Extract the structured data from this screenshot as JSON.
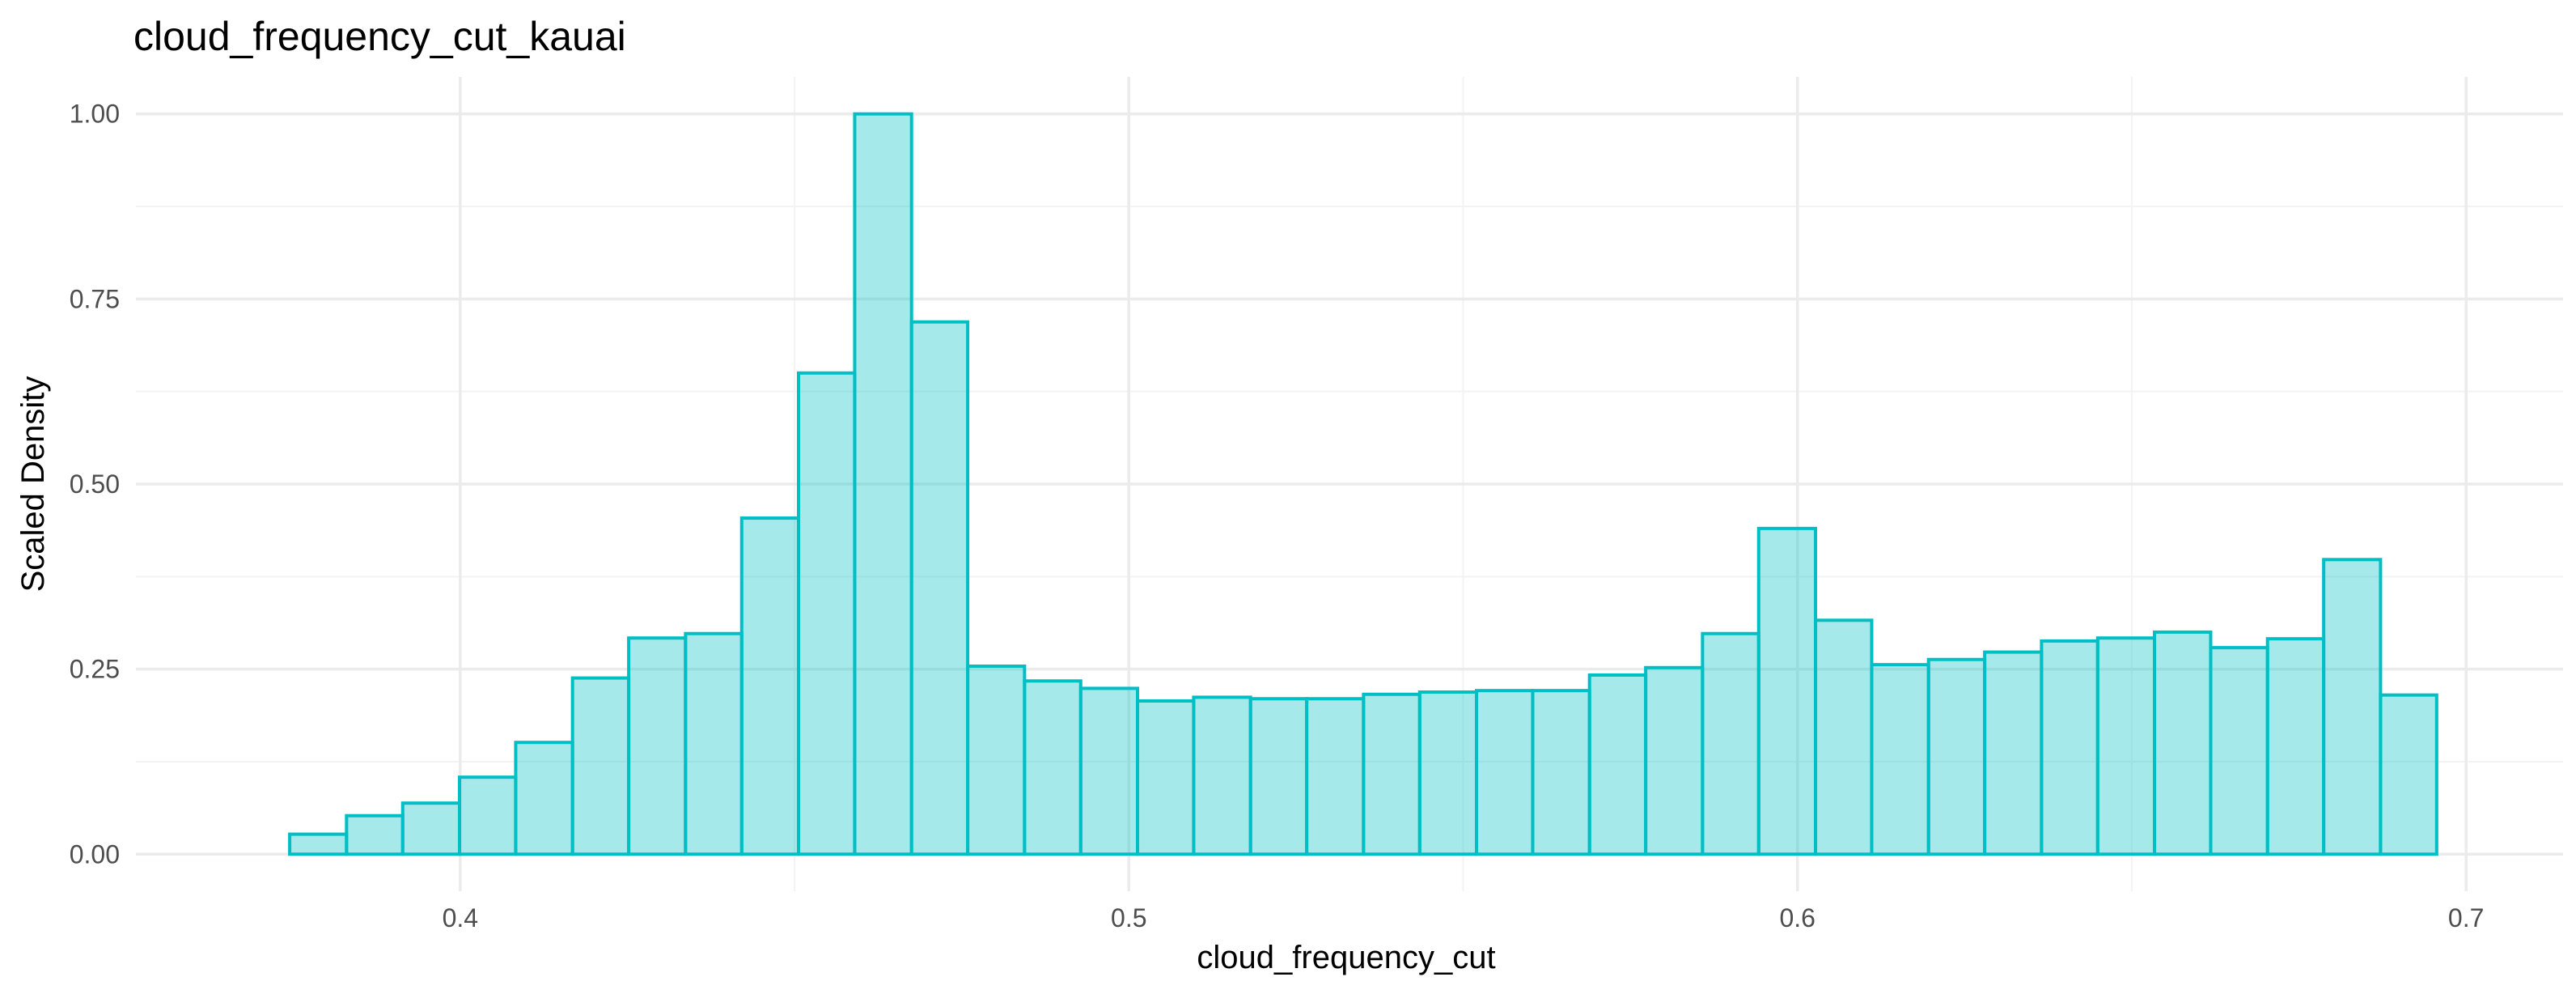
{
  "chart_data": {
    "type": "bar",
    "title": "cloud_frequency_cut_kauai",
    "xlabel": "cloud_frequency_cut",
    "ylabel": "Scaled Density",
    "xlim": [
      0.3515,
      0.7145
    ],
    "ylim": [
      -0.05,
      1.05
    ],
    "x_ticks": [
      0.4,
      0.5,
      0.6,
      0.7
    ],
    "x_tick_labels": [
      "0.4",
      "0.5",
      "0.6",
      "0.7"
    ],
    "y_ticks": [
      0,
      0.25,
      0.5,
      0.75,
      1
    ],
    "y_tick_labels": [
      "0.00",
      "0.25",
      "0.50",
      "0.75",
      "1.00"
    ],
    "grid": true,
    "bin_edges": [
      0.3745,
      0.383,
      0.3914,
      0.3999,
      0.4083,
      0.4168,
      0.4252,
      0.4337,
      0.4421,
      0.4506,
      0.459,
      0.4675,
      0.4759,
      0.4844,
      0.4928,
      0.5013,
      0.5097,
      0.5182,
      0.5266,
      0.5351,
      0.5435,
      0.552,
      0.5604,
      0.5689,
      0.5773,
      0.5858,
      0.5942,
      0.6027,
      0.6111,
      0.6196,
      0.628,
      0.6365,
      0.6449,
      0.6534,
      0.6618,
      0.6703,
      0.6787,
      0.6872,
      0.6956
    ],
    "values": [
      0.027,
      0.052,
      0.069,
      0.104,
      0.151,
      0.238,
      0.292,
      0.298,
      0.454,
      0.65,
      1.0,
      0.719,
      0.254,
      0.234,
      0.224,
      0.207,
      0.212,
      0.21,
      0.21,
      0.216,
      0.219,
      0.221,
      0.221,
      0.242,
      0.252,
      0.298,
      0.44,
      0.316,
      0.256,
      0.263,
      0.273,
      0.288,
      0.292,
      0.3,
      0.279,
      0.291,
      0.398,
      0.215
    ],
    "colors": {
      "fill": "#00bfc4",
      "fill_opacity": 0.35,
      "stroke": "#00bfc4",
      "grid": "#ebebeb",
      "tick_text": "#4d4d4d"
    }
  }
}
